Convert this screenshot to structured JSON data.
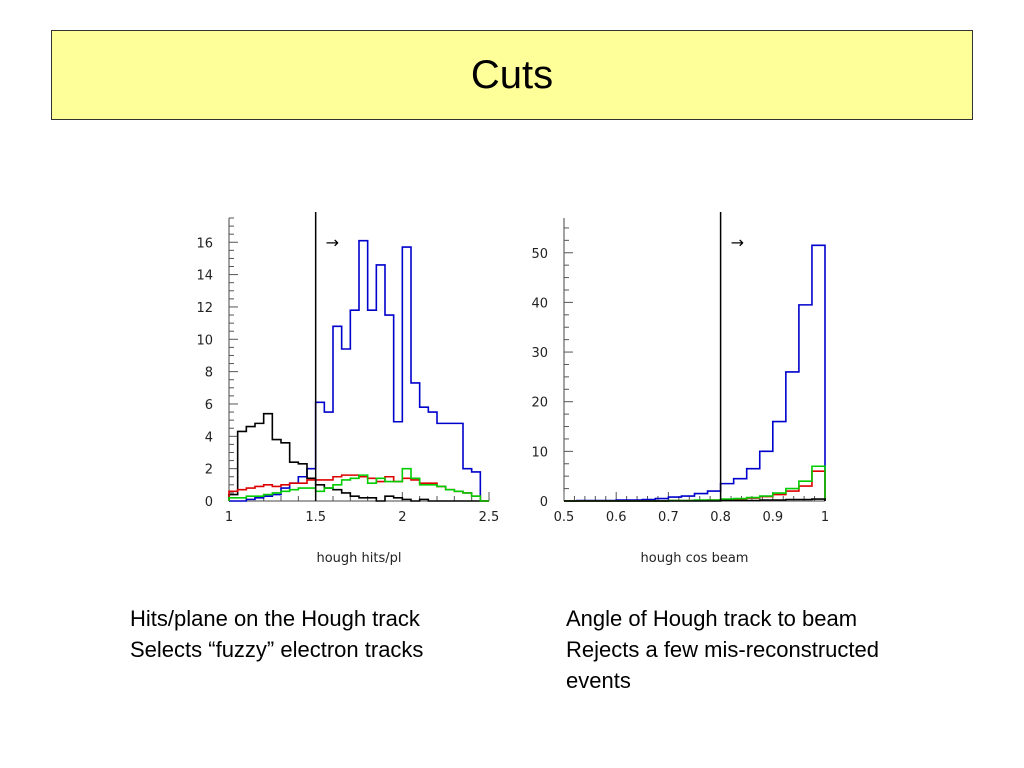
{
  "slide": {
    "title": "Cuts",
    "colors": {
      "title_bg": "#ffff99"
    }
  },
  "captions": {
    "left": [
      "Hits/plane on the Hough track",
      "Selects “fuzzy” electron tracks"
    ],
    "right": [
      "Angle of Hough track to beam",
      "Rejects a few mis-reconstructed",
      "events"
    ]
  },
  "chart_data": [
    {
      "type": "step-histogram",
      "xlabel": "hough hits/pl",
      "xlim": [
        1,
        2.5
      ],
      "ylim": [
        0,
        17.5
      ],
      "xticks": [
        "1",
        "1.5",
        "2",
        "2.5"
      ],
      "yticks": [
        "0",
        "2",
        "4",
        "6",
        "8",
        "10",
        "12",
        "14",
        "16"
      ],
      "cut": {
        "x": 1.5,
        "arrow": "→"
      },
      "bin_edges": [
        1.0,
        1.05,
        1.1,
        1.15,
        1.2,
        1.25,
        1.3,
        1.35,
        1.4,
        1.45,
        1.5,
        1.55,
        1.6,
        1.65,
        1.7,
        1.75,
        1.8,
        1.85,
        1.9,
        1.95,
        2.0,
        2.05,
        2.1,
        2.15,
        2.2,
        2.25,
        2.3,
        2.35,
        2.4,
        2.45,
        2.5
      ],
      "series": [
        {
          "color": "#0000cc",
          "values": [
            0.0,
            0.0,
            0.1,
            0.2,
            0.3,
            0.4,
            0.8,
            1.1,
            1.5,
            2.0,
            6.1,
            5.5,
            10.8,
            9.4,
            11.8,
            16.1,
            11.8,
            14.6,
            11.5,
            4.9,
            15.7,
            7.3,
            5.8,
            5.5,
            4.8,
            4.8,
            4.8,
            2.0,
            1.8,
            0.0
          ]
        },
        {
          "color": "#000000",
          "values": [
            0.4,
            4.3,
            4.6,
            4.8,
            5.4,
            3.8,
            3.6,
            2.4,
            2.3,
            1.4,
            1.0,
            0.8,
            0.7,
            0.5,
            0.3,
            0.2,
            0.2,
            0.0,
            0.3,
            0.2,
            0.1,
            0.0,
            0.1,
            0.0,
            0.0,
            0.0,
            0.0,
            0.0,
            0.0,
            0.0
          ]
        },
        {
          "color": "#dd0000",
          "values": [
            0.6,
            0.7,
            0.8,
            0.9,
            1.0,
            0.9,
            1.0,
            1.1,
            1.1,
            1.3,
            1.3,
            1.3,
            1.5,
            1.6,
            1.6,
            1.5,
            1.4,
            1.2,
            1.5,
            1.2,
            1.4,
            1.3,
            1.1,
            1.1,
            0.9,
            0.7,
            0.6,
            0.5,
            0.3,
            0.0
          ]
        },
        {
          "color": "#00cc00",
          "values": [
            0.2,
            0.2,
            0.3,
            0.3,
            0.4,
            0.5,
            0.6,
            0.7,
            0.8,
            0.8,
            0.6,
            0.8,
            1.0,
            1.3,
            1.4,
            1.6,
            1.1,
            1.4,
            1.2,
            1.2,
            2.0,
            1.4,
            1.0,
            1.0,
            0.9,
            0.7,
            0.6,
            0.5,
            0.3,
            0.0
          ]
        }
      ]
    },
    {
      "type": "step-histogram",
      "xlabel": "hough cos beam",
      "xlim": [
        0.5,
        1.0
      ],
      "ylim": [
        0,
        57
      ],
      "xticks": [
        "0.5",
        "0.6",
        "0.7",
        "0.8",
        "0.9",
        "1"
      ],
      "yticks": [
        "0",
        "10",
        "20",
        "30",
        "40",
        "50"
      ],
      "cut": {
        "x": 0.8,
        "arrow": "→"
      },
      "bin_edges": [
        0.5,
        0.525,
        0.55,
        0.575,
        0.6,
        0.625,
        0.65,
        0.675,
        0.7,
        0.725,
        0.75,
        0.775,
        0.8,
        0.825,
        0.85,
        0.875,
        0.9,
        0.925,
        0.95,
        0.975,
        1.0
      ],
      "series": [
        {
          "color": "#0000cc",
          "values": [
            0.0,
            0.1,
            0.1,
            0.1,
            0.2,
            0.2,
            0.3,
            0.5,
            0.8,
            1.0,
            1.5,
            2.0,
            3.5,
            4.5,
            6.5,
            10.0,
            16.0,
            26.0,
            39.5,
            51.5
          ]
        },
        {
          "color": "#dd0000",
          "values": [
            0.0,
            0.0,
            0.0,
            0.0,
            0.0,
            0.0,
            0.0,
            0.0,
            0.1,
            0.1,
            0.1,
            0.2,
            0.3,
            0.4,
            0.6,
            0.9,
            1.3,
            2.0,
            3.0,
            6.0
          ]
        },
        {
          "color": "#00cc00",
          "values": [
            0.0,
            0.0,
            0.0,
            0.0,
            0.0,
            0.0,
            0.0,
            0.0,
            0.1,
            0.1,
            0.2,
            0.2,
            0.4,
            0.5,
            0.7,
            1.0,
            1.6,
            2.5,
            4.0,
            7.0
          ]
        },
        {
          "color": "#000000",
          "values": [
            0.0,
            0.0,
            0.0,
            0.0,
            0.0,
            0.0,
            0.0,
            0.0,
            0.0,
            0.0,
            0.0,
            0.0,
            0.1,
            0.1,
            0.1,
            0.2,
            0.2,
            0.3,
            0.3,
            0.4
          ]
        }
      ]
    }
  ]
}
